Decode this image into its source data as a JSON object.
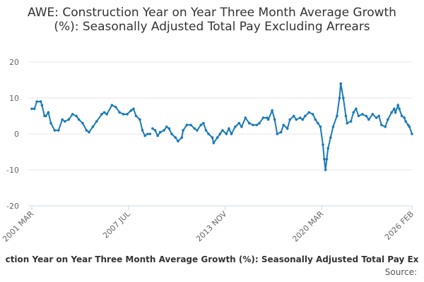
{
  "chart_data": {
    "type": "line",
    "title": "AWE: Construction Year on Year Three Month Average Growth (%): Seasonally Adjusted Total Pay Excluding Arrears",
    "caption": "ction Year on Year Three Month Average Growth (%): Seasonally Adjusted Total Pay Ex",
    "source": "Source:",
    "x": [
      "2001-03",
      "2001-05",
      "2001-07",
      "2001-10",
      "2001-11",
      "2002-01",
      "2002-02",
      "2002-04",
      "2002-06",
      "2002-09",
      "2002-12",
      "2003-03",
      "2003-05",
      "2003-08",
      "2003-11",
      "2004-02",
      "2004-04",
      "2004-07",
      "2004-10",
      "2004-12",
      "2005-03",
      "2005-06",
      "2005-10",
      "2005-12",
      "2006-02",
      "2006-06",
      "2006-09",
      "2006-12",
      "2007-03",
      "2007-06",
      "2007-09",
      "2007-11",
      "2008-01",
      "2008-04",
      "2008-06",
      "2008-08",
      "2008-10",
      "2008-12",
      "2009-01",
      "2009-02",
      "2009-04",
      "2009-06",
      "2009-08",
      "2009-11",
      "2010-01",
      "2010-03",
      "2010-05",
      "2010-08",
      "2010-10",
      "2011-01",
      "2011-02",
      "2011-05",
      "2011-08",
      "2011-11",
      "2012-01",
      "2012-04",
      "2012-06",
      "2012-08",
      "2012-10",
      "2013-01",
      "2013-02",
      "2013-05",
      "2013-07",
      "2013-09",
      "2013-12",
      "2014-02",
      "2014-04",
      "2014-07",
      "2014-10",
      "2014-12",
      "2015-03",
      "2015-06",
      "2015-09",
      "2015-12",
      "2016-02",
      "2016-05",
      "2016-08",
      "2016-09",
      "2016-12",
      "2017-02",
      "2017-04",
      "2017-07",
      "2017-09",
      "2017-12",
      "2018-02",
      "2018-05",
      "2018-07",
      "2018-10",
      "2018-12",
      "2019-02",
      "2019-05",
      "2019-08",
      "2019-10",
      "2019-12",
      "2020-02",
      "2020-04",
      "2020-05",
      "2020-06",
      "2020-07",
      "2020-08",
      "2020-10",
      "2020-12",
      "2021-03",
      "2021-05",
      "2021-06",
      "2021-08",
      "2021-10",
      "2021-11",
      "2022-02",
      "2022-04",
      "2022-06",
      "2022-08",
      "2022-11",
      "2023-02",
      "2023-04",
      "2023-07",
      "2023-10",
      "2023-12",
      "2024-02",
      "2024-05",
      "2024-07",
      "2024-10",
      "2024-12",
      "2025-01",
      "2025-03",
      "2025-04",
      "2025-06",
      "2025-08",
      "2025-09",
      "2025-11",
      "2025-12",
      "2026-02"
    ],
    "series": [
      {
        "color": "#1a7ab8",
        "values": [
          7,
          7,
          9,
          9,
          8,
          5,
          5,
          6,
          3,
          1,
          1,
          4,
          3.5,
          4,
          5.5,
          5,
          4,
          3,
          1,
          0.5,
          2,
          3.5,
          5.5,
          6,
          5.5,
          8,
          7.5,
          6,
          5.5,
          5.5,
          6.5,
          7,
          5,
          4,
          1,
          -0.5,
          0,
          0,
          null,
          1.5,
          1,
          -0.5,
          0.5,
          1,
          2,
          1.5,
          0,
          -1,
          -2,
          -1,
          1,
          2.5,
          2.5,
          1.5,
          1,
          2.5,
          3,
          1,
          0,
          -1,
          -2.5,
          -1,
          0,
          1,
          0,
          1.5,
          0,
          2,
          3,
          2,
          4.5,
          3,
          2.5,
          2.5,
          3,
          4.5,
          4.5,
          4,
          6.5,
          4,
          0,
          0.5,
          2.5,
          1.5,
          4,
          5,
          4,
          4.5,
          4,
          5,
          6,
          5.5,
          4,
          3,
          2,
          -3,
          -7,
          -10,
          -7,
          -4,
          -1,
          2,
          5,
          10,
          14,
          10,
          5,
          3,
          3.5,
          6,
          7,
          5,
          5.5,
          5,
          4,
          5.5,
          4.5,
          5,
          2.5,
          2,
          4,
          6,
          7,
          6,
          8,
          7,
          5,
          4.5,
          3.5,
          2.5,
          2,
          0
        ]
      }
    ],
    "xlim": [
      "2001-03",
      "2026-02"
    ],
    "xticks": [
      {
        "value": "2001-03",
        "label": "2001 MAR"
      },
      {
        "value": "2007-07",
        "label": "2007 JUL"
      },
      {
        "value": "2013-11",
        "label": "2013 NOV"
      },
      {
        "value": "2020-03",
        "label": "2020 MAR"
      },
      {
        "value": "2026-02",
        "label": "2026 FEB"
      }
    ],
    "ylim": [
      -20,
      20
    ],
    "yticks": [
      -20,
      -10,
      0,
      10,
      20
    ],
    "grid": true
  }
}
